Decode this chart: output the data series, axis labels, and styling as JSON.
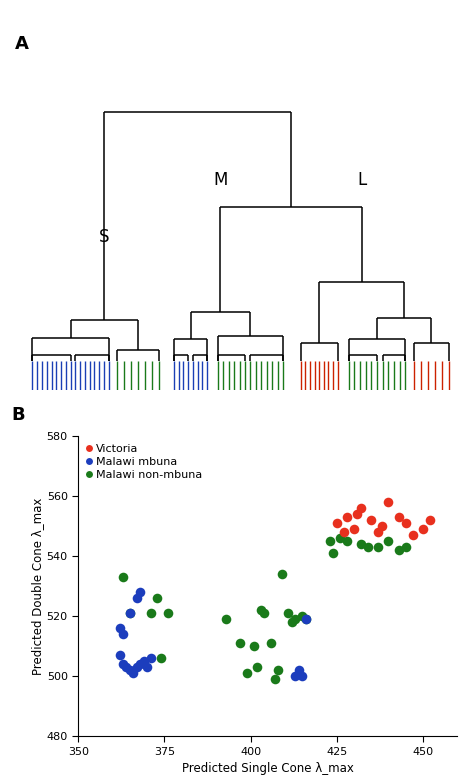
{
  "panel_A_label": "A",
  "panel_B_label": "B",
  "dendrogram": {
    "S_label": "S",
    "M_label": "M",
    "L_label": "L",
    "blue": "#1a3fb5",
    "green": "#1a7a1a",
    "red": "#cc2200",
    "black": "#000000"
  },
  "scatter": {
    "xlabel": "Predicted Single Cone λ_max",
    "ylabel": "Predicted Double Cone λ_max",
    "xlim": [
      350,
      460
    ],
    "ylim": [
      480,
      580
    ],
    "xticks": [
      350,
      375,
      400,
      425,
      450
    ],
    "yticks": [
      480,
      500,
      520,
      540,
      560,
      580
    ],
    "victoria_color": "#e8301e",
    "mbuna_color": "#1c3dbd",
    "nonmbuna_color": "#1a7a1a",
    "victoria_x": [
      425,
      427,
      428,
      430,
      431,
      432,
      435,
      437,
      438,
      440,
      443,
      445,
      447,
      450,
      452
    ],
    "victoria_y": [
      551,
      548,
      553,
      549,
      554,
      556,
      552,
      548,
      550,
      558,
      553,
      551,
      547,
      549,
      552
    ],
    "mbuna_x": [
      362,
      363,
      364,
      365,
      366,
      367,
      368,
      369,
      370,
      371,
      362,
      363,
      365,
      367,
      368,
      413,
      414,
      415,
      416
    ],
    "mbuna_y": [
      507,
      504,
      503,
      502,
      501,
      503,
      504,
      505,
      503,
      506,
      516,
      514,
      521,
      526,
      528,
      500,
      502,
      500,
      519
    ],
    "nonmbuna_x": [
      363,
      365,
      371,
      373,
      374,
      376,
      393,
      397,
      399,
      401,
      402,
      403,
      404,
      406,
      407,
      408,
      409,
      411,
      412,
      413,
      415,
      416,
      423,
      424,
      426,
      428,
      432,
      434,
      437,
      440,
      443,
      445
    ],
    "nonmbuna_y": [
      533,
      521,
      521,
      526,
      506,
      521,
      519,
      511,
      501,
      510,
      503,
      522,
      521,
      511,
      499,
      502,
      534,
      521,
      518,
      519,
      520,
      519,
      545,
      541,
      546,
      545,
      544,
      543,
      543,
      545,
      542,
      543
    ],
    "legend_labels": [
      "Victoria",
      "Malawi mbuna",
      "Malawi non-mbuna"
    ]
  }
}
